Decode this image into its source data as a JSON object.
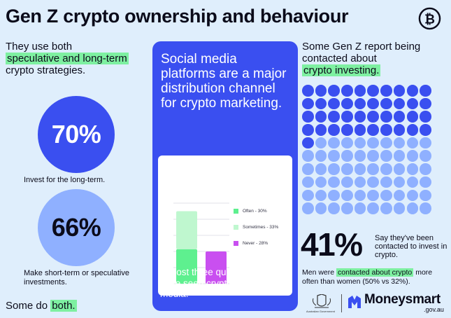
{
  "title": "Gen Z crypto ownership and behaviour",
  "left": {
    "heading_pre": "They use both",
    "heading_hl": "speculative and long-term",
    "heading_post": "crypto strategies.",
    "stat1": {
      "value": "70%",
      "caption": "Invest for the long-term."
    },
    "stat2": {
      "value": "66%",
      "caption": "Make short-term or speculative investments."
    },
    "footer_pre": "Some do ",
    "footer_hl": "both."
  },
  "center": {
    "heading": "Social media platforms are a major distribution channel for crypto marketing.",
    "footer": "Almost three quarters of Gen Z have seen crypto ads on social media.",
    "legend": [
      {
        "label": "Often - 30%",
        "color": "#5ef08f"
      },
      {
        "label": "Sometimes - 33%",
        "color": "#bff7cf"
      },
      {
        "label": "Never - 28%",
        "color": "#c94ff0"
      }
    ]
  },
  "chart_data": {
    "type": "bar",
    "stacked": true,
    "categories": [
      "",
      ""
    ],
    "series": [
      {
        "name": "Often - 30%",
        "values": [
          30,
          0
        ]
      },
      {
        "name": "Sometimes - 33%",
        "values": [
          33,
          0
        ]
      },
      {
        "name": "Never - 28%",
        "values": [
          0,
          28
        ]
      }
    ],
    "ylim": [
      0,
      70
    ],
    "grid": true,
    "legend": "right"
  },
  "right": {
    "heading_pre": "Some Gen Z report being contacted about",
    "heading_hl": "crypto investing.",
    "dots_total": 100,
    "dots_highlighted": 41,
    "dot_colors": {
      "highlighted": "#3a4ff0",
      "rest": "#8fb0ff"
    },
    "big_stat": "41%",
    "big_caption": "Say they've been contacted to invest in crypto.",
    "note_pre": "Men were ",
    "note_hl": "contacted about crypto",
    "note_post": " more often than women (50% vs 32%)."
  },
  "footer": {
    "gov_label": "Australian Government",
    "brand": "Moneysmart",
    "domain": ".gov.au"
  }
}
